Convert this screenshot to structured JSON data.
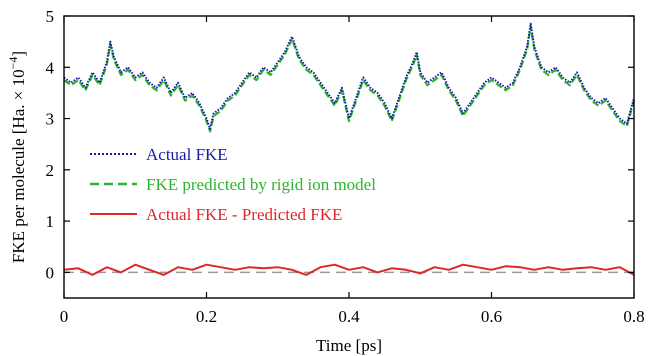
{
  "chart_data": {
    "type": "line",
    "xlabel": "Time [ps]",
    "ylabel_main": "FKE per molecule [Ha. × 10",
    "ylabel_exp": "−4",
    "ylabel_close": "]",
    "xlim": [
      0,
      0.8
    ],
    "ylim": [
      -0.5,
      5
    ],
    "xticks": [
      0,
      0.2,
      0.4,
      0.6,
      0.8
    ],
    "xtick_labels": [
      "0",
      "0.2",
      "0.4",
      "0.6",
      "0.8"
    ],
    "yticks": [
      0,
      1,
      2,
      3,
      4,
      5
    ],
    "ytick_labels": [
      "0",
      "1",
      "2",
      "3",
      "4",
      "5"
    ],
    "grid": false,
    "legend_position": "lower-left",
    "zero_reference_line": true,
    "series": [
      {
        "name": "Actual FKE",
        "color": "#1a1aa8",
        "style": "dotted",
        "x": [
          0,
          0.01,
          0.02,
          0.03,
          0.04,
          0.05,
          0.06,
          0.065,
          0.07,
          0.08,
          0.09,
          0.1,
          0.11,
          0.12,
          0.13,
          0.14,
          0.15,
          0.16,
          0.17,
          0.18,
          0.19,
          0.2,
          0.205,
          0.21,
          0.22,
          0.23,
          0.24,
          0.25,
          0.26,
          0.27,
          0.28,
          0.29,
          0.3,
          0.31,
          0.32,
          0.325,
          0.33,
          0.34,
          0.35,
          0.36,
          0.37,
          0.38,
          0.39,
          0.4,
          0.41,
          0.42,
          0.43,
          0.44,
          0.45,
          0.46,
          0.47,
          0.48,
          0.49,
          0.495,
          0.5,
          0.51,
          0.52,
          0.53,
          0.54,
          0.55,
          0.56,
          0.57,
          0.58,
          0.59,
          0.6,
          0.61,
          0.62,
          0.63,
          0.64,
          0.65,
          0.655,
          0.66,
          0.67,
          0.68,
          0.69,
          0.7,
          0.71,
          0.72,
          0.73,
          0.74,
          0.75,
          0.76,
          0.77,
          0.78,
          0.79,
          0.8
        ],
        "y": [
          3.8,
          3.7,
          3.8,
          3.6,
          3.9,
          3.7,
          4.1,
          4.5,
          4.2,
          3.9,
          4.0,
          3.8,
          3.9,
          3.7,
          3.6,
          3.8,
          3.5,
          3.7,
          3.4,
          3.5,
          3.3,
          3.0,
          2.8,
          3.1,
          3.2,
          3.4,
          3.5,
          3.7,
          3.9,
          3.8,
          4.0,
          3.9,
          4.1,
          4.3,
          4.6,
          4.4,
          4.2,
          4.0,
          3.9,
          3.7,
          3.5,
          3.3,
          3.6,
          3.0,
          3.4,
          3.8,
          3.6,
          3.5,
          3.3,
          3.0,
          3.4,
          3.8,
          4.1,
          4.3,
          3.9,
          3.7,
          3.8,
          3.9,
          3.6,
          3.4,
          3.1,
          3.3,
          3.5,
          3.7,
          3.8,
          3.7,
          3.6,
          3.7,
          4.0,
          4.4,
          4.85,
          4.4,
          4.0,
          3.9,
          4.0,
          3.8,
          3.7,
          3.9,
          3.6,
          3.4,
          3.3,
          3.4,
          3.2,
          3.0,
          2.9,
          3.4
        ]
      },
      {
        "name": "FKE predicted by rigid ion model",
        "color": "#2db52d",
        "style": "dashed",
        "x": [
          0,
          0.01,
          0.02,
          0.03,
          0.04,
          0.05,
          0.06,
          0.065,
          0.07,
          0.08,
          0.09,
          0.1,
          0.11,
          0.12,
          0.13,
          0.14,
          0.15,
          0.16,
          0.17,
          0.18,
          0.19,
          0.2,
          0.205,
          0.21,
          0.22,
          0.23,
          0.24,
          0.25,
          0.26,
          0.27,
          0.28,
          0.29,
          0.3,
          0.31,
          0.32,
          0.325,
          0.33,
          0.34,
          0.35,
          0.36,
          0.37,
          0.38,
          0.39,
          0.4,
          0.41,
          0.42,
          0.43,
          0.44,
          0.45,
          0.46,
          0.47,
          0.48,
          0.49,
          0.495,
          0.5,
          0.51,
          0.52,
          0.53,
          0.54,
          0.55,
          0.56,
          0.57,
          0.58,
          0.59,
          0.6,
          0.61,
          0.62,
          0.63,
          0.64,
          0.65,
          0.655,
          0.66,
          0.67,
          0.68,
          0.69,
          0.7,
          0.71,
          0.72,
          0.73,
          0.74,
          0.75,
          0.76,
          0.77,
          0.78,
          0.79,
          0.8
        ],
        "y": [
          3.75,
          3.65,
          3.75,
          3.55,
          3.85,
          3.65,
          4.05,
          4.45,
          4.15,
          3.85,
          3.95,
          3.75,
          3.85,
          3.65,
          3.55,
          3.75,
          3.45,
          3.65,
          3.35,
          3.45,
          3.25,
          2.95,
          2.75,
          3.05,
          3.15,
          3.35,
          3.45,
          3.65,
          3.85,
          3.75,
          3.95,
          3.85,
          4.05,
          4.25,
          4.55,
          4.35,
          4.15,
          3.95,
          3.85,
          3.65,
          3.45,
          3.25,
          3.55,
          2.95,
          3.35,
          3.75,
          3.55,
          3.45,
          3.25,
          2.95,
          3.35,
          3.75,
          4.05,
          4.25,
          3.85,
          3.65,
          3.75,
          3.85,
          3.55,
          3.35,
          3.05,
          3.25,
          3.45,
          3.65,
          3.75,
          3.65,
          3.55,
          3.65,
          3.95,
          4.35,
          4.8,
          4.35,
          3.95,
          3.85,
          3.95,
          3.75,
          3.65,
          3.85,
          3.55,
          3.35,
          3.25,
          3.35,
          3.15,
          2.95,
          2.85,
          3.35
        ]
      },
      {
        "name": "Actual FKE - Predicted FKE",
        "color": "#e0262b",
        "style": "solid",
        "x": [
          0,
          0.02,
          0.04,
          0.06,
          0.08,
          0.1,
          0.12,
          0.14,
          0.16,
          0.18,
          0.2,
          0.22,
          0.24,
          0.26,
          0.28,
          0.3,
          0.32,
          0.34,
          0.36,
          0.38,
          0.4,
          0.42,
          0.44,
          0.46,
          0.48,
          0.5,
          0.52,
          0.54,
          0.56,
          0.58,
          0.6,
          0.62,
          0.64,
          0.66,
          0.68,
          0.7,
          0.72,
          0.74,
          0.76,
          0.78,
          0.8
        ],
        "y": [
          0.05,
          0.08,
          -0.05,
          0.1,
          0.0,
          0.15,
          0.05,
          -0.05,
          0.1,
          0.05,
          0.15,
          0.1,
          0.05,
          0.1,
          0.08,
          0.1,
          0.05,
          -0.05,
          0.1,
          0.15,
          0.05,
          0.1,
          0.0,
          0.08,
          0.05,
          -0.02,
          0.1,
          0.05,
          0.15,
          0.1,
          0.05,
          0.12,
          0.1,
          0.05,
          0.1,
          0.05,
          0.08,
          0.1,
          0.05,
          0.1,
          -0.05
        ]
      }
    ]
  }
}
